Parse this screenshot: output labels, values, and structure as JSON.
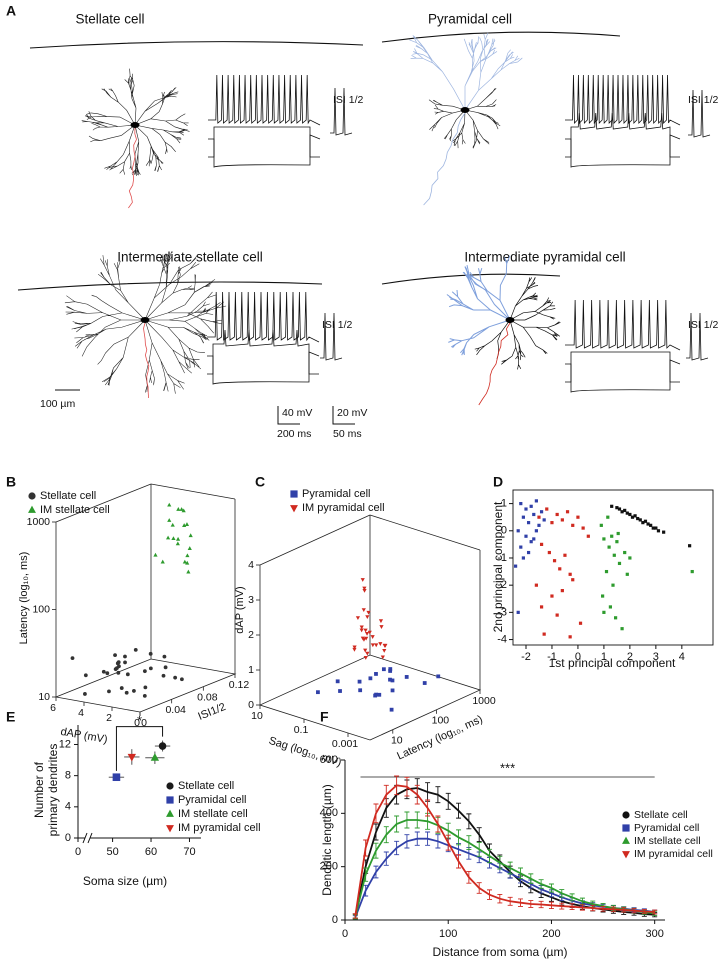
{
  "panel_labels": [
    "A",
    "B",
    "C",
    "D",
    "E",
    "F"
  ],
  "panel_a": {
    "cells": [
      {
        "title": "Stellate cell",
        "isi_label": "ISI 1/2"
      },
      {
        "title": "Pyramidal cell",
        "isi_label": "ISI 1/2"
      },
      {
        "title": "Intermediate stellate cell",
        "isi_label": "ISI 1/2"
      },
      {
        "title": "Intermediate pyramidal cell",
        "isi_label": "ISI 1/2"
      }
    ],
    "scale_bars": {
      "morphology": "100 µm",
      "trace_voltage": "40 mV",
      "trace_time": "200 ms",
      "isi_voltage": "20 mV",
      "isi_time": "50 ms"
    }
  },
  "chart_data": [
    {
      "type": "scatter3d",
      "legend": "top-left",
      "xlabel": "ISI1/2",
      "ylabel": "Latency (log₁₀, ms)",
      "zlabel": "dAP (mV)",
      "xlim": [
        0,
        0.12
      ],
      "xticks": [
        0,
        0.04,
        0.08,
        0.12
      ],
      "ylim": [
        10,
        1000
      ],
      "yticks": [
        10,
        100,
        1000
      ],
      "ylog": true,
      "zlim": [
        0,
        6
      ],
      "zticks": [
        0,
        2,
        4,
        6
      ],
      "series": [
        {
          "name": "Stellate cell",
          "color": "#333333",
          "marker": "circle",
          "x": [
            0.01,
            0.02,
            0.03,
            0.015,
            0.025,
            0.04,
            0.005,
            0.035,
            0.02,
            0.045,
            0.03,
            0.01,
            0.05,
            0.025,
            0.015,
            0.035,
            0.02,
            0.04,
            0.03,
            0.055,
            0.012,
            0.028,
            0.018,
            0.038,
            0.022,
            0.008,
            0.033,
            0.042,
            0.027,
            0.06
          ],
          "y": [
            15,
            20,
            12,
            25,
            18,
            30,
            14,
            22,
            16,
            28,
            35,
            11,
            20,
            24,
            13,
            19,
            27,
            17,
            21,
            15,
            26,
            14,
            32,
            18,
            12,
            23,
            16,
            20,
            29,
            14
          ],
          "z": [
            1,
            2,
            3,
            0.5,
            4,
            1.5,
            2.5,
            3.5,
            5,
            0.8,
            2,
            4.5,
            1,
            3,
            1.8,
            0.3,
            2.2,
            4,
            3.2,
            0.6,
            5.5,
            1.2,
            2.8,
            3.8,
            0.9,
            2,
            4.2,
            1.6,
            2.6,
            0.4
          ]
        },
        {
          "name": "IM stellate cell",
          "color": "#2e9b2e",
          "marker": "triangle-up",
          "x": [
            0.09,
            0.1,
            0.11,
            0.095,
            0.105,
            0.085,
            0.115,
            0.1,
            0.09,
            0.11,
            0.12,
            0.095,
            0.105,
            0.08,
            0.1,
            0.115,
            0.09,
            0.11,
            0.1,
            0.085
          ],
          "y": [
            900,
            500,
            300,
            200,
            700,
            400,
            250,
            150,
            600,
            350,
            180,
            800,
            450,
            220,
            280,
            160,
            380,
            650,
            520,
            240
          ],
          "z": [
            3,
            2.5,
            3.5,
            2,
            3.2,
            2.8,
            3.8,
            2.2,
            3,
            2.6,
            3.4,
            2.4,
            3.6,
            2.9,
            2.1,
            3.3,
            2.7,
            3.1,
            2.3,
            3.7
          ]
        }
      ]
    },
    {
      "type": "scatter3d",
      "legend": "top-left",
      "xlabel": "Latency (log₁₀, ms)",
      "ylabel": "dAP (mV)",
      "zlabel": "Sag (log₁₀, mV)",
      "xlim": [
        3,
        1000
      ],
      "xticks": [
        10,
        100,
        1000
      ],
      "xlog": true,
      "ylim": [
        0,
        4
      ],
      "yticks": [
        0,
        1,
        2,
        3,
        4
      ],
      "zlim": [
        0.0001,
        10
      ],
      "zticks": [
        0.001,
        0.1,
        10
      ],
      "zlog": true,
      "series": [
        {
          "name": "Pyramidal cell",
          "color": "#3040a8",
          "marker": "square",
          "x": [
            50,
            100,
            30,
            200,
            80,
            150,
            60,
            40,
            300,
            120,
            70,
            250,
            90,
            35,
            180,
            500,
            45,
            110,
            20,
            140
          ],
          "y": [
            0.2,
            0.3,
            0.1,
            0.4,
            0.2,
            0.5,
            0.1,
            0.3,
            0.2,
            0.4,
            0,
            0.3,
            0.2,
            0.1,
            0.5,
            0.3,
            0.2,
            0.4,
            0.1,
            0.3
          ],
          "z": [
            0.01,
            0.1,
            0.001,
            0.05,
            0.2,
            0.005,
            0.02,
            0.5,
            0.003,
            0.08,
            0.03,
            0.15,
            0.008,
            0.3,
            0.04,
            0.002,
            0.06,
            0.012,
            1,
            0.025
          ]
        },
        {
          "name": "IM pyramidal cell",
          "color": "#d02a20",
          "marker": "triangle-down",
          "x": [
            60,
            80,
            50,
            100,
            70,
            120,
            90,
            55,
            65,
            75,
            110,
            85,
            95,
            45,
            130,
            60,
            150,
            70,
            80,
            100,
            40,
            90,
            120,
            65,
            75,
            55,
            85,
            105,
            70,
            95
          ],
          "y": [
            1.2,
            1.5,
            1.8,
            2.2,
            1.0,
            1.3,
            2.8,
            1.6,
            1.4,
            1.1,
            2.0,
            1.7,
            1.3,
            2.5,
            1.5,
            1.9,
            1.2,
            3.2,
            1.4,
            1.6,
            2.3,
            1.1,
            1.8,
            3.0,
            1.5,
            1.3,
            2.1,
            1.0,
            1.7,
            1.4
          ],
          "z": [
            0.05,
            0.1,
            0.02,
            0.2,
            0.08,
            0.03,
            0.15,
            0.06,
            0.01,
            0.3,
            0.04,
            0.12,
            0.07,
            0.025,
            0.18,
            0.09,
            0.05,
            0.11,
            0.035,
            0.25,
            0.06,
            0.14,
            0.045,
            0.08,
            0.02,
            0.16,
            0.1,
            0.03,
            0.07,
            0.2
          ]
        }
      ]
    },
    {
      "type": "scatter",
      "xlabel": "1st principal component",
      "ylabel": "2nd principal component",
      "xlim": [
        -2.5,
        5.2
      ],
      "xticks": [
        -2,
        -1,
        0,
        1,
        2,
        3,
        4
      ],
      "ylim": [
        -4.2,
        1.5
      ],
      "yticks": [
        -4,
        -3,
        -2,
        -1,
        0,
        1
      ],
      "series": [
        {
          "color": "#111111",
          "x": [
            1.3,
            1.5,
            1.7,
            1.9,
            2.1,
            2.3,
            2.5,
            2.7,
            2.9,
            3.1,
            1.6,
            1.8,
            2.0,
            2.2,
            2.4,
            2.6,
            2.8,
            3.0,
            3.3,
            4.3
          ],
          "y": [
            0.9,
            0.85,
            0.7,
            0.65,
            0.5,
            0.45,
            0.3,
            0.25,
            0.1,
            0.0,
            0.8,
            0.75,
            0.6,
            0.55,
            0.4,
            0.35,
            0.2,
            0.1,
            -0.05,
            -0.55
          ]
        },
        {
          "color": "#2e9b2e",
          "x": [
            0.9,
            1.0,
            1.2,
            1.4,
            1.6,
            1.1,
            1.3,
            1.5,
            1.8,
            2.0,
            0.95,
            1.25,
            1.45,
            1.7,
            1.0,
            1.35,
            1.15,
            1.55,
            1.9,
            4.4
          ],
          "y": [
            0.2,
            -0.3,
            -0.6,
            -0.9,
            -1.2,
            -1.5,
            -0.2,
            -0.4,
            -0.8,
            -1.0,
            -2.4,
            -2.8,
            -3.2,
            -3.6,
            -3.0,
            -2.0,
            0.5,
            -0.1,
            -1.6,
            -1.5
          ]
        },
        {
          "color": "#3040a8",
          "x": [
            -2.2,
            -2.0,
            -1.8,
            -1.6,
            -1.4,
            -2.1,
            -1.9,
            -1.7,
            -1.5,
            -1.3,
            -2.3,
            -2.0,
            -1.8,
            -1.6,
            -2.2,
            -1.9,
            -1.7,
            -2.1,
            -2.4,
            -2.3
          ],
          "y": [
            1.0,
            0.8,
            0.9,
            1.1,
            0.7,
            0.5,
            0.3,
            0.6,
            0.2,
            0.4,
            0.0,
            -0.2,
            -0.4,
            0.0,
            -0.6,
            -0.8,
            -0.3,
            -1.0,
            -1.3,
            -3.0
          ]
        },
        {
          "color": "#d02a20",
          "x": [
            -1.5,
            -1.2,
            -1.0,
            -0.8,
            -0.6,
            -0.4,
            -0.2,
            0.0,
            0.2,
            0.4,
            -1.4,
            -1.1,
            -0.9,
            -0.7,
            -0.5,
            -0.3,
            -1.6,
            -1.0,
            -0.6,
            -0.2,
            0.1,
            -1.3,
            -0.8,
            -1.4,
            -0.3
          ],
          "y": [
            0.5,
            0.8,
            0.3,
            0.6,
            0.4,
            0.7,
            0.2,
            0.5,
            0.1,
            -0.2,
            -0.5,
            -0.8,
            -1.1,
            -1.4,
            -0.9,
            -1.6,
            -2.0,
            -2.4,
            -2.2,
            -1.8,
            -3.4,
            -3.8,
            -3.1,
            -2.8,
            -3.9
          ]
        }
      ]
    },
    {
      "type": "errorbar_scatter",
      "legend": "right",
      "axis_break": true,
      "significance": "*",
      "xlabel": "Soma size (µm)",
      "ylabel": [
        "Number of",
        "primary dendrites"
      ],
      "xlim": [
        41,
        73
      ],
      "xticks": [
        0,
        50,
        60,
        70
      ],
      "ylim": [
        0,
        14.5
      ],
      "yticks": [
        0,
        4,
        8,
        12
      ],
      "series": [
        {
          "name": "Stellate cell",
          "color": "#1a1a1a",
          "marker": "circle",
          "x": [
            63
          ],
          "y": [
            11.8
          ],
          "xerr": [
            2
          ],
          "yerr": [
            0.7
          ]
        },
        {
          "name": "Pyramidal cell",
          "color": "#3040a8",
          "marker": "square",
          "x": [
            51
          ],
          "y": [
            7.8
          ],
          "xerr": [
            2
          ],
          "yerr": [
            0.3
          ]
        },
        {
          "name": "IM stellate cell",
          "color": "#2e9b2e",
          "marker": "triangle-up",
          "x": [
            61
          ],
          "y": [
            10.3
          ],
          "xerr": [
            2.5
          ],
          "yerr": [
            0.8
          ]
        },
        {
          "name": "IM pyramidal cell",
          "color": "#d02a20",
          "marker": "triangle-down",
          "x": [
            55
          ],
          "y": [
            10.4
          ],
          "xerr": [
            2
          ],
          "yerr": [
            1
          ]
        }
      ]
    },
    {
      "type": "line_errorbar",
      "legend": "right",
      "xlabel": "Distance from soma (µm)",
      "ylabel": "Dendritic length (µm)",
      "x": [
        10,
        20,
        30,
        40,
        50,
        60,
        70,
        80,
        90,
        100,
        110,
        120,
        130,
        140,
        150,
        160,
        170,
        180,
        190,
        200,
        210,
        220,
        230,
        240,
        250,
        260,
        270,
        280,
        290,
        300
      ],
      "xlim": [
        0,
        310
      ],
      "xticks": [
        0,
        100,
        200,
        300
      ],
      "ylim": [
        0,
        600
      ],
      "yticks": [
        0,
        200,
        400,
        600
      ],
      "annotation": {
        "text": "***",
        "x": [
          15,
          300
        ]
      },
      "series": [
        {
          "name": "Stellate cell",
          "color": "#111111",
          "marker": "circle",
          "values": [
            15,
            200,
            330,
            420,
            470,
            490,
            495,
            480,
            470,
            445,
            410,
            370,
            320,
            260,
            220,
            180,
            145,
            120,
            100,
            85,
            70,
            60,
            52,
            45,
            40,
            35,
            30,
            27,
            22,
            20
          ],
          "errors": [
            8,
            25,
            30,
            35,
            35,
            35,
            35,
            35,
            30,
            30,
            28,
            28,
            26,
            25,
            24,
            22,
            20,
            18,
            16,
            15,
            14,
            13,
            12,
            11,
            10,
            10,
            9,
            9,
            8,
            8
          ]
        },
        {
          "name": "Pyramidal cell",
          "color": "#3040a8",
          "marker": "square",
          "values": [
            10,
            110,
            180,
            230,
            270,
            295,
            305,
            305,
            295,
            280,
            265,
            250,
            235,
            215,
            195,
            175,
            155,
            135,
            115,
            100,
            85,
            72,
            62,
            55,
            50,
            45,
            42,
            38,
            35,
            30
          ],
          "errors": [
            6,
            20,
            22,
            25,
            25,
            25,
            25,
            25,
            25,
            24,
            22,
            22,
            20,
            20,
            18,
            18,
            16,
            15,
            14,
            13,
            12,
            11,
            10,
            10,
            9,
            9,
            8,
            8,
            7,
            7
          ]
        },
        {
          "name": "IM stellate cell",
          "color": "#2e9b2e",
          "marker": "triangle-up",
          "values": [
            12,
            170,
            260,
            320,
            360,
            375,
            375,
            370,
            355,
            335,
            310,
            290,
            265,
            240,
            215,
            195,
            175,
            155,
            135,
            120,
            100,
            85,
            70,
            60,
            52,
            45,
            40,
            35,
            30,
            25
          ],
          "errors": [
            8,
            25,
            28,
            30,
            30,
            30,
            30,
            30,
            30,
            28,
            28,
            26,
            26,
            25,
            24,
            22,
            20,
            18,
            16,
            15,
            14,
            13,
            12,
            11,
            10,
            10,
            9,
            9,
            8,
            8
          ]
        },
        {
          "name": "IM pyramidal cell",
          "color": "#d02a20",
          "marker": "triangle-down",
          "values": [
            15,
            270,
            400,
            470,
            505,
            500,
            470,
            420,
            360,
            290,
            220,
            160,
            120,
            95,
            80,
            70,
            65,
            60,
            58,
            55,
            52,
            50,
            47,
            45,
            42,
            40,
            38,
            35,
            32,
            30
          ],
          "errors": [
            8,
            30,
            35,
            35,
            35,
            35,
            35,
            30,
            30,
            28,
            25,
            22,
            20,
            18,
            16,
            15,
            14,
            13,
            12,
            12,
            11,
            11,
            10,
            10,
            9,
            9,
            8,
            8,
            7,
            7
          ]
        }
      ]
    }
  ]
}
